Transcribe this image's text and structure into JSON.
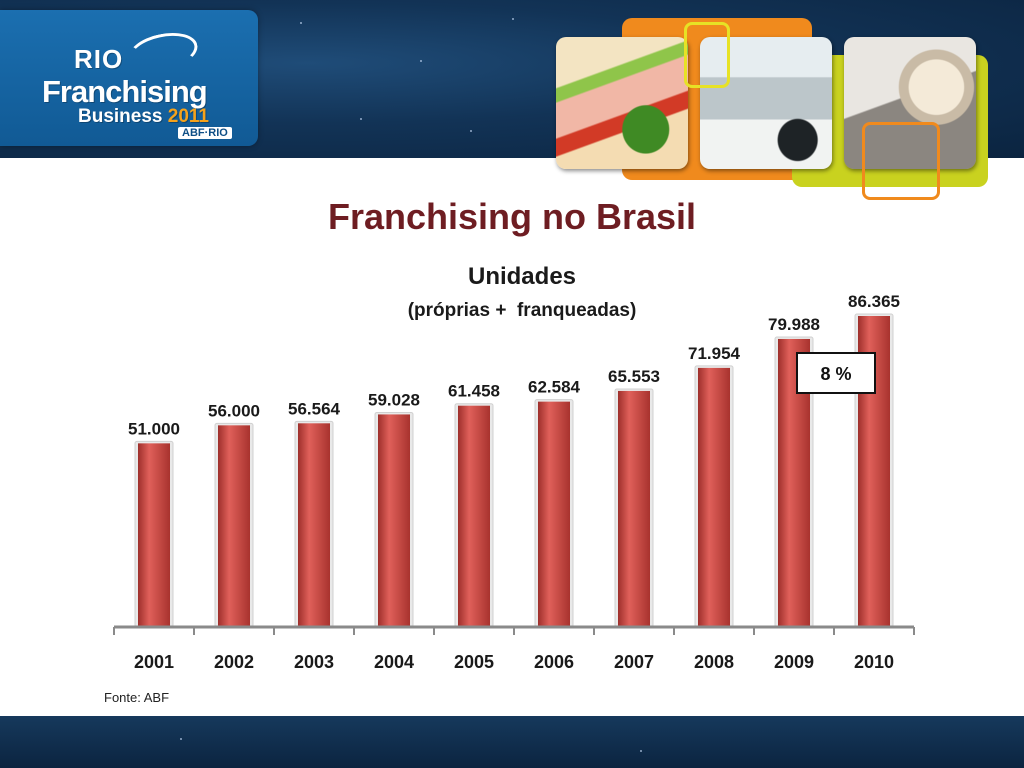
{
  "logo": {
    "line1": "RIO",
    "line2": "Franchising",
    "line3": "Business",
    "year": "2011",
    "tag": "ABF·RIO"
  },
  "slide": {
    "title": "Franchising no Brasil",
    "source": "Fonte: ABF"
  },
  "colors": {
    "title": "#6e1d22",
    "bar": "#c8453f",
    "header_band": "#123356"
  },
  "chart_data": {
    "type": "bar",
    "title": "Unidades",
    "subtitle": "(próprias +  franqueadas)",
    "categories": [
      "2001",
      "2002",
      "2003",
      "2004",
      "2005",
      "2006",
      "2007",
      "2008",
      "2009",
      "2010"
    ],
    "values": [
      51000,
      56000,
      56564,
      59028,
      61458,
      62584,
      65553,
      71954,
      79988,
      86365
    ],
    "value_labels": [
      "51.000",
      "56.000",
      "56.564",
      "59.028",
      "61.458",
      "62.584",
      "65.553",
      "71.954",
      "79.988",
      "86.365"
    ],
    "annotation": "8 %",
    "xlabel": "",
    "ylabel": "",
    "ylim": [
      0,
      86365
    ],
    "grid": false,
    "legend": "none"
  }
}
